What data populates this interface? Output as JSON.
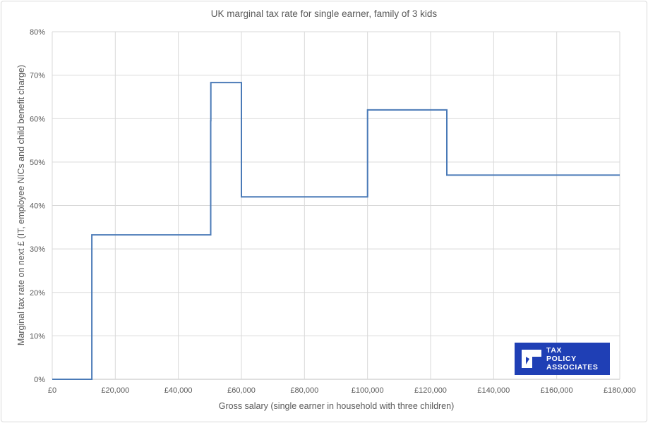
{
  "chart_data": {
    "type": "line",
    "title": "UK marginal tax rate for single earner, family of 3 kids",
    "xlabel": "Gross salary (single earner in household with three children)",
    "ylabel": "Marginal tax rate on next £ (IT, employee NICs and child benefit charge)",
    "xlim": [
      0,
      180000
    ],
    "ylim": [
      0,
      80
    ],
    "x_ticks": [
      "£0",
      "£20,000",
      "£40,000",
      "£60,000",
      "£80,000",
      "£100,000",
      "£120,000",
      "£140,000",
      "£160,000",
      "£180,000"
    ],
    "y_ticks": [
      "0%",
      "10%",
      "20%",
      "30%",
      "40%",
      "50%",
      "60%",
      "70%",
      "80%"
    ],
    "grid": true,
    "series": [
      {
        "color": "#4a7ab7",
        "x": [
          0,
          12570,
          12570,
          50270,
          50270,
          50300,
          50300,
          60000,
          60000,
          100000,
          100000,
          125140,
          125140,
          180000
        ],
        "y": [
          0,
          0,
          33.25,
          33.25,
          59.5,
          59.5,
          68.3,
          68.3,
          42,
          42,
          62,
          62,
          47,
          47
        ]
      }
    ]
  },
  "logo": {
    "line1": "TAX",
    "line2": "POLICY",
    "line3": "ASSOCIATES",
    "bg_color": "#1f3fb5"
  }
}
